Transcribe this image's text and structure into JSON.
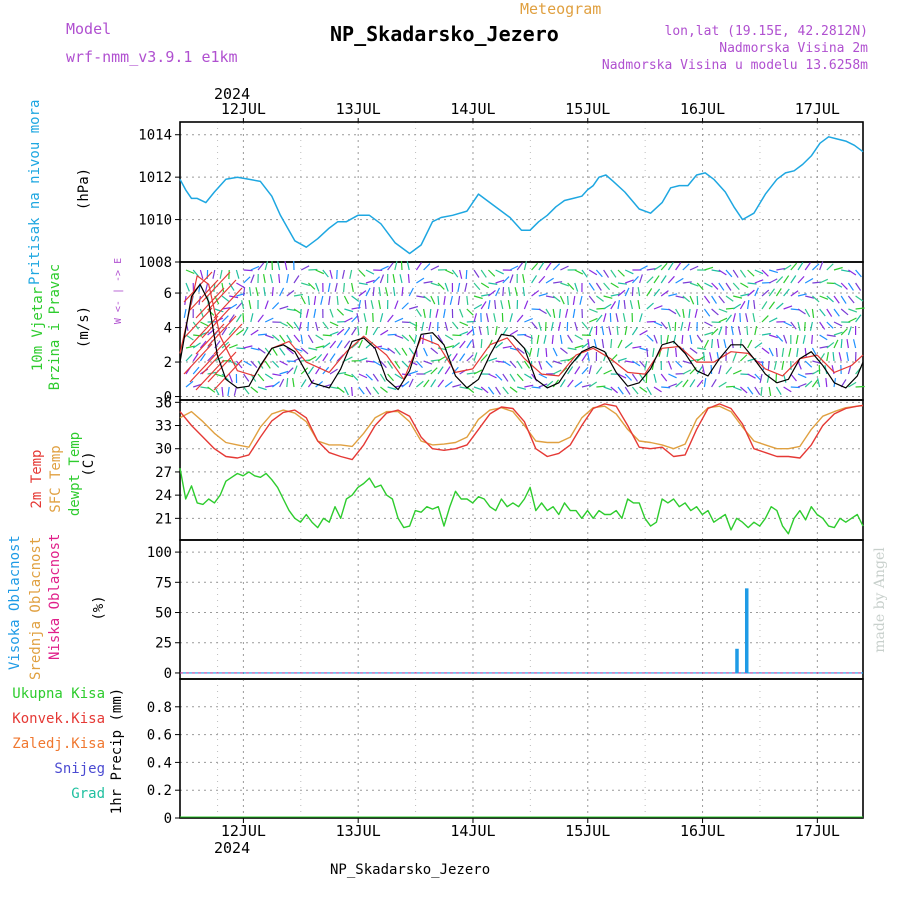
{
  "header": {
    "model_label": "Model",
    "model_name": "wrf-nmm_v3.9.1 e1km",
    "meteogram_label": "Meteogram",
    "station_title": "NP_Skadarsko_Jezero",
    "location": "lon,lat (19.15E, 42.2812N)",
    "altitude": "Nadmorska Visina 2m",
    "model_altitude": "Nadmorska Visina u modelu 13.6258m",
    "year_top": "2024",
    "year_bottom": "2024",
    "footer": "NP_Skadarsko_Jezero",
    "credit": "made by Angel"
  },
  "colors": {
    "pressure": "#1ea7e1",
    "wind_speed": "#000000",
    "wind_gust": "#e53935",
    "temp2m": "#e53935",
    "sfc": "#e0a040",
    "dewpt": "#2ecc2e",
    "cloud_high": "#1e9be6",
    "cloud_mid": "#e0a040",
    "cloud_low": "#e0208a",
    "precip_total": "#2ecc2e",
    "precip_conv": "#e53935",
    "precip_frozen": "#f07830",
    "snow": "#4b4bd2",
    "graupel": "#20c0a0",
    "purple_label": "#b050d0"
  },
  "chart_data": [
    {
      "name": "pressure",
      "type": "line",
      "ylabel_main": "Pritisak na nivou mora",
      "ylabel_unit": "(hPa)",
      "ylim": [
        1008,
        1014.6
      ],
      "yticks": [
        "1008",
        "1010",
        "1012",
        "1014"
      ],
      "series": [
        {
          "x": [
            0,
            0.1,
            0.2,
            0.3,
            0.45,
            0.6,
            0.8,
            1.0,
            1.2,
            1.4,
            1.6,
            1.75,
            2.0,
            2.2,
            2.4,
            2.6,
            2.75,
            2.9,
            3.1,
            3.3,
            3.5,
            3.75,
            4.0,
            4.2,
            4.4,
            4.55,
            4.75,
            5.0,
            5.2,
            5.4,
            5.55,
            5.75,
            5.95,
            6.1,
            6.25,
            6.4,
            6.55,
            6.7,
            6.85,
            7.0,
            7.1,
            7.2,
            7.3,
            7.42,
            7.55,
            7.75,
            8.0,
            8.2,
            8.4,
            8.55,
            8.7,
            8.85,
            9.0,
            9.15,
            9.3,
            9.5,
            9.65,
            9.8,
            10.0,
            10.2,
            10.4,
            10.55,
            10.7,
            10.85,
            11.0,
            11.15,
            11.3,
            11.45,
            11.6,
            11.75,
            11.9
          ],
          "values": [
            1011.9,
            1011.4,
            1011.0,
            1011.0,
            1010.8,
            1011.3,
            1011.9,
            1012.0,
            1011.9,
            1011.8,
            1011.1,
            1010.2,
            1009.0,
            1008.7,
            1009.1,
            1009.6,
            1009.9,
            1009.9,
            1010.2,
            1010.2,
            1009.8,
            1008.9,
            1008.4,
            1008.8,
            1009.9,
            1010.1,
            1010.2,
            1010.4,
            1011.2,
            1010.8,
            1010.5,
            1010.1,
            1009.5,
            1009.5,
            1009.9,
            1010.2,
            1010.6,
            1010.9,
            1011.0,
            1011.1,
            1011.4,
            1011.6,
            1012.0,
            1012.1,
            1011.8,
            1011.3,
            1010.5,
            1010.3,
            1010.8,
            1011.5,
            1011.6,
            1011.6,
            1012.1,
            1012.2,
            1011.9,
            1011.3,
            1010.6,
            1010.0,
            1010.3,
            1011.2,
            1011.9,
            1012.2,
            1012.3,
            1012.6,
            1013.0,
            1013.6,
            1013.9,
            1013.8,
            1013.7,
            1013.5,
            1013.2
          ]
        }
      ]
    },
    {
      "name": "wind",
      "type": "line",
      "ylabel_main": "10m Vjetar",
      "ylabel_sub": "Brzina i Pravac",
      "ylabel_unit": "(m/s)",
      "compass": "W <- | -> E",
      "ylim": [
        -0.2,
        7.8
      ],
      "yticks": [
        "0",
        "2",
        "4",
        "6"
      ],
      "series": [
        {
          "name": "speed",
          "x": [
            0,
            0.2,
            0.35,
            0.5,
            0.65,
            0.8,
            1.0,
            1.2,
            1.4,
            1.6,
            1.8,
            2.0,
            2.3,
            2.6,
            2.8,
            3.0,
            3.2,
            3.4,
            3.6,
            3.8,
            4.0,
            4.2,
            4.4,
            4.6,
            4.8,
            5.0,
            5.2,
            5.4,
            5.6,
            5.8,
            6.0,
            6.2,
            6.4,
            6.6,
            6.8,
            7.0,
            7.2,
            7.4,
            7.6,
            7.8,
            8.0,
            8.2,
            8.4,
            8.6,
            8.8,
            9.0,
            9.2,
            9.4,
            9.6,
            9.8,
            10.0,
            10.2,
            10.4,
            10.6,
            10.8,
            11.0,
            11.2,
            11.4,
            11.6,
            11.8,
            11.9
          ],
          "values": [
            2.0,
            5.8,
            6.5,
            5.5,
            2.4,
            1.0,
            0.5,
            0.6,
            1.8,
            2.8,
            3.0,
            2.6,
            0.8,
            0.5,
            1.6,
            3.2,
            3.4,
            2.8,
            1.0,
            0.4,
            1.5,
            3.6,
            3.7,
            3.0,
            1.2,
            0.5,
            1.0,
            2.4,
            3.6,
            3.5,
            2.8,
            1.0,
            0.5,
            0.8,
            1.8,
            2.6,
            2.9,
            2.6,
            1.4,
            0.6,
            0.8,
            1.6,
            3.0,
            3.2,
            2.5,
            1.5,
            1.2,
            2.2,
            3.0,
            3.0,
            2.2,
            1.3,
            0.8,
            1.0,
            2.2,
            2.6,
            1.8,
            0.8,
            0.5,
            1.2,
            2.0
          ]
        },
        {
          "name": "gust",
          "x": [
            0,
            0.3,
            0.5,
            0.7,
            1.0,
            1.3,
            1.6,
            1.9,
            2.2,
            2.6,
            2.9,
            3.2,
            3.6,
            3.9,
            4.2,
            4.5,
            4.8,
            5.1,
            5.4,
            5.7,
            6.0,
            6.3,
            6.6,
            6.9,
            7.2,
            7.5,
            7.8,
            8.1,
            8.4,
            8.7,
            9.0,
            9.3,
            9.6,
            9.9,
            10.2,
            10.5,
            10.8,
            11.1,
            11.4,
            11.7,
            11.9
          ],
          "values": [
            2.5,
            7.0,
            6.5,
            3.5,
            1.5,
            1.2,
            2.8,
            3.2,
            2.0,
            1.4,
            2.6,
            3.5,
            2.4,
            1.0,
            3.4,
            3.0,
            1.4,
            1.6,
            3.0,
            3.4,
            2.2,
            1.3,
            1.2,
            2.4,
            2.8,
            2.2,
            1.4,
            1.3,
            2.8,
            2.9,
            2.0,
            2.0,
            2.6,
            2.5,
            1.6,
            1.2,
            2.2,
            2.4,
            1.4,
            1.8,
            2.4
          ]
        }
      ]
    },
    {
      "name": "temperature",
      "type": "line",
      "ylabel_a": "2m Temp",
      "ylabel_b": "SFC Temp",
      "ylabel_c": "dewpt Temp",
      "ylabel_unit": "(C)",
      "ylim": [
        18.2,
        36.3
      ],
      "yticks": [
        "21",
        "24",
        "27",
        "30",
        "33",
        "36"
      ],
      "series": [
        {
          "name": "2m",
          "x": [
            0,
            0.2,
            0.4,
            0.6,
            0.8,
            1.0,
            1.2,
            1.4,
            1.6,
            1.8,
            2.0,
            2.2,
            2.4,
            2.6,
            2.8,
            3.0,
            3.2,
            3.4,
            3.6,
            3.8,
            4.0,
            4.2,
            4.4,
            4.6,
            4.8,
            5.0,
            5.2,
            5.4,
            5.6,
            5.8,
            6.0,
            6.2,
            6.4,
            6.6,
            6.8,
            7.0,
            7.2,
            7.4,
            7.6,
            7.8,
            8.0,
            8.2,
            8.4,
            8.6,
            8.8,
            9.0,
            9.2,
            9.4,
            9.6,
            9.8,
            10.0,
            10.2,
            10.4,
            10.6,
            10.8,
            11.0,
            11.2,
            11.4,
            11.6,
            11.8,
            11.9
          ],
          "values": [
            34.8,
            33.0,
            31.5,
            30.0,
            29.0,
            28.8,
            29.2,
            31.5,
            33.6,
            34.7,
            35.0,
            34.0,
            31.0,
            29.5,
            29.0,
            28.6,
            30.5,
            33.0,
            34.6,
            35.0,
            34.2,
            31.5,
            30.0,
            29.8,
            30.0,
            30.5,
            32.5,
            34.5,
            35.4,
            35.2,
            33.5,
            30.0,
            29.0,
            29.4,
            30.5,
            33.0,
            35.2,
            35.8,
            35.5,
            33.0,
            30.2,
            30.0,
            30.2,
            29.0,
            29.2,
            32.5,
            35.2,
            35.8,
            35.2,
            33.2,
            30.0,
            29.5,
            29.0,
            29.0,
            28.8,
            30.5,
            33.0,
            34.5,
            35.2,
            35.5,
            35.6
          ]
        },
        {
          "name": "sfc",
          "x": [
            0,
            0.2,
            0.4,
            0.6,
            0.8,
            1.0,
            1.2,
            1.4,
            1.6,
            1.8,
            2.0,
            2.2,
            2.4,
            2.6,
            2.8,
            3.0,
            3.2,
            3.4,
            3.6,
            3.8,
            4.0,
            4.2,
            4.4,
            4.6,
            4.8,
            5.0,
            5.2,
            5.4,
            5.6,
            5.8,
            6.0,
            6.2,
            6.4,
            6.6,
            6.8,
            7.0,
            7.2,
            7.4,
            7.6,
            7.8,
            8.0,
            8.2,
            8.4,
            8.6,
            8.8,
            9.0,
            9.2,
            9.4,
            9.6,
            9.8,
            10.0,
            10.2,
            10.4,
            10.6,
            10.8,
            11.0,
            11.2,
            11.4,
            11.6,
            11.8,
            11.9
          ],
          "values": [
            34.0,
            34.8,
            33.5,
            32.0,
            30.8,
            30.5,
            30.2,
            32.8,
            34.5,
            35.0,
            34.6,
            33.5,
            31.0,
            30.5,
            30.5,
            30.3,
            32.0,
            34.0,
            34.8,
            34.8,
            33.5,
            31.0,
            30.5,
            30.6,
            30.8,
            31.5,
            33.8,
            35.0,
            35.3,
            34.8,
            33.0,
            31.0,
            30.8,
            30.8,
            31.5,
            34.0,
            35.3,
            35.5,
            34.5,
            32.5,
            31.0,
            30.8,
            30.5,
            30.0,
            30.6,
            33.8,
            35.3,
            35.5,
            34.8,
            32.8,
            31.0,
            30.5,
            30.0,
            30.0,
            30.3,
            32.5,
            34.2,
            34.8,
            35.3,
            35.5,
            35.6
          ]
        },
        {
          "name": "dewpt",
          "x": [
            0,
            0.1,
            0.2,
            0.3,
            0.4,
            0.5,
            0.6,
            0.7,
            0.8,
            0.9,
            1.0,
            1.1,
            1.2,
            1.3,
            1.4,
            1.5,
            1.6,
            1.7,
            1.8,
            1.9,
            2.0,
            2.1,
            2.2,
            2.3,
            2.4,
            2.5,
            2.6,
            2.7,
            2.8,
            2.9,
            3.0,
            3.1,
            3.2,
            3.3,
            3.4,
            3.5,
            3.6,
            3.7,
            3.8,
            3.9,
            4.0,
            4.1,
            4.2,
            4.3,
            4.4,
            4.5,
            4.6,
            4.7,
            4.8,
            4.9,
            5.0,
            5.1,
            5.2,
            5.3,
            5.4,
            5.5,
            5.6,
            5.7,
            5.8,
            5.9,
            6.0,
            6.1,
            6.2,
            6.3,
            6.4,
            6.5,
            6.6,
            6.7,
            6.8,
            6.9,
            7.0,
            7.1,
            7.2,
            7.3,
            7.4,
            7.5,
            7.6,
            7.7,
            7.8,
            7.9,
            8.0,
            8.1,
            8.2,
            8.3,
            8.4,
            8.5,
            8.6,
            8.7,
            8.8,
            8.9,
            9.0,
            9.1,
            9.2,
            9.3,
            9.4,
            9.5,
            9.6,
            9.7,
            9.8,
            9.9,
            10.0,
            10.1,
            10.2,
            10.3,
            10.4,
            10.5,
            10.6,
            10.7,
            10.8,
            10.9,
            11.0,
            11.1,
            11.2,
            11.3,
            11.4,
            11.5,
            11.6,
            11.7,
            11.8,
            11.9
          ],
          "values": [
            27.5,
            23.5,
            25.2,
            23.0,
            22.8,
            23.5,
            23.0,
            24.0,
            25.8,
            26.3,
            26.8,
            26.5,
            27.0,
            26.5,
            26.3,
            26.8,
            26.0,
            25.0,
            23.5,
            22.0,
            21.0,
            20.5,
            21.5,
            20.5,
            19.8,
            21.0,
            20.5,
            22.5,
            21.0,
            23.5,
            24.0,
            25.0,
            25.5,
            26.2,
            25.0,
            25.3,
            24.0,
            23.5,
            21.0,
            19.8,
            20.0,
            22.0,
            21.8,
            22.5,
            22.2,
            22.5,
            20.0,
            22.5,
            24.5,
            23.5,
            23.5,
            23.0,
            23.8,
            23.5,
            22.5,
            22.0,
            23.5,
            22.5,
            23.0,
            22.5,
            23.5,
            25.0,
            22.0,
            23.0,
            22.0,
            22.5,
            21.5,
            23.0,
            22.0,
            22.0,
            21.0,
            22.0,
            21.0,
            22.0,
            21.5,
            21.5,
            22.0,
            21.0,
            23.5,
            23.0,
            23.0,
            21.0,
            20.0,
            20.5,
            23.5,
            23.0,
            23.5,
            22.5,
            23.0,
            22.0,
            22.5,
            21.5,
            22.0,
            20.5,
            21.0,
            21.5,
            19.5,
            21.0,
            20.5,
            19.8,
            20.5,
            20.0,
            21.0,
            22.5,
            22.0,
            20.0,
            19.0,
            21.0,
            22.0,
            20.8,
            22.5,
            21.5,
            21.0,
            20.0,
            19.8,
            21.0,
            20.5,
            21.0,
            21.5,
            20.0
          ]
        }
      ]
    },
    {
      "name": "clouds",
      "type": "bar",
      "ylabel_a": "Visoka Oblacnost",
      "ylabel_b": "Srednja Oblacnost",
      "ylabel_c": "Niska Oblacnost",
      "ylabel_unit": "(%)",
      "ylim": [
        -5,
        110
      ],
      "yticks": [
        "0",
        "25",
        "50",
        "75",
        "100"
      ],
      "series": [
        {
          "name": "high",
          "x": [
            0,
            9.7,
            9.87,
            11.9
          ],
          "values": [
            0,
            20,
            70,
            0
          ]
        }
      ]
    },
    {
      "name": "precip",
      "type": "bar",
      "legend": [
        "Ukupna Kisa",
        "Konvek.Kisa",
        "Zaledj.Kisa",
        "Snijeg",
        "Grad"
      ],
      "ylabel_unit": "1hr Precip (mm)",
      "ylim": [
        0,
        1.0
      ],
      "yticks": [
        "0",
        "0.2",
        "0.4",
        "0.6",
        "0.8"
      ],
      "series": [
        {
          "name": "total",
          "x": [
            0,
            11.9
          ],
          "values": [
            0,
            0
          ]
        }
      ]
    }
  ],
  "x_axis": {
    "days": [
      "12JUL",
      "13JUL",
      "14JUL",
      "15JUL",
      "16JUL",
      "17JUL"
    ],
    "xlim": [
      0,
      11.9
    ]
  }
}
